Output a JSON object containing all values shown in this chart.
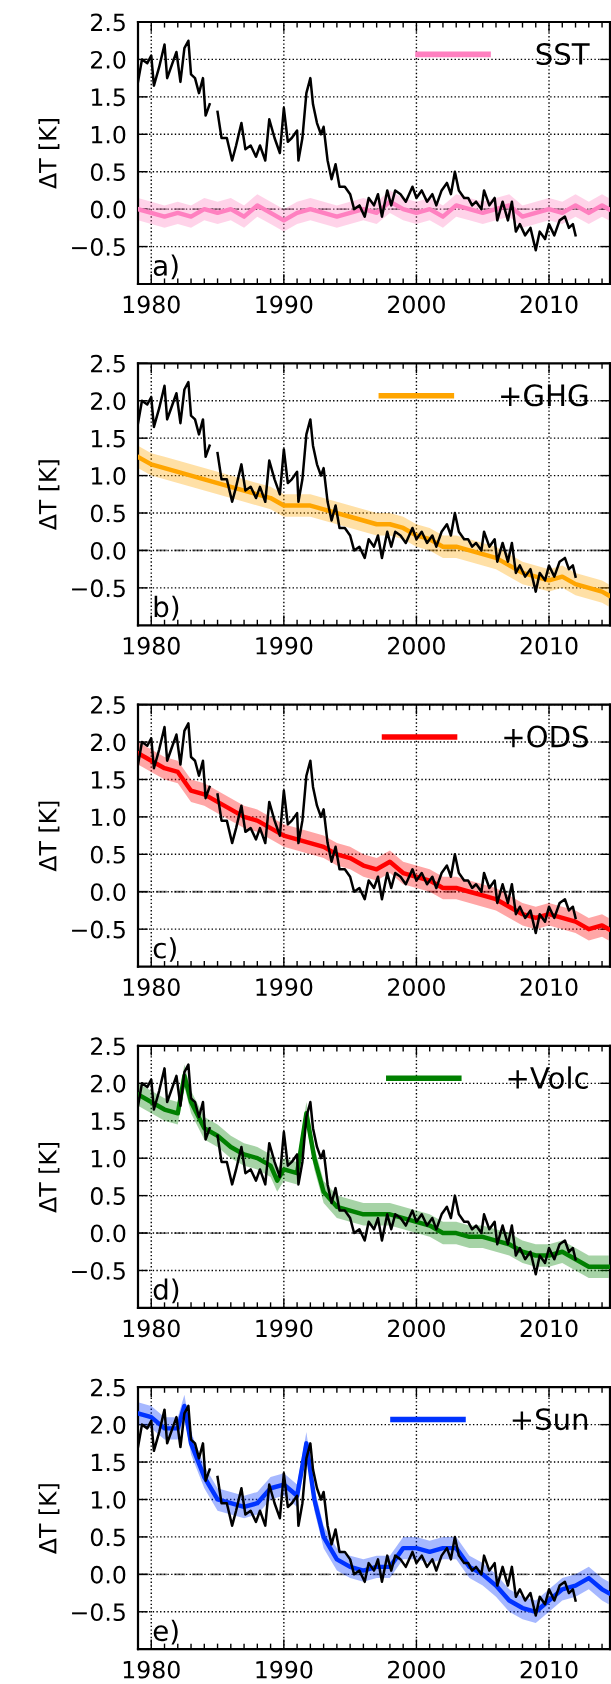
{
  "chart_data": [
    {
      "type": "line",
      "ylabel": "ΔT [K]",
      "annotations": [
        "a)"
      ],
      "xlim": [
        1979,
        2014.6
      ],
      "ylim": [
        -1.0,
        2.5
      ],
      "xticks": [
        1980,
        1990,
        2000,
        2010
      ],
      "yticks": [
        {
          "value": -0.5,
          "label": "−0.5"
        },
        {
          "value": 0.0,
          "label": "0.0"
        },
        {
          "value": 0.5,
          "label": "0.5"
        },
        {
          "value": 1.0,
          "label": "1.0"
        },
        {
          "value": 1.5,
          "label": "1.5"
        },
        {
          "value": 2.0,
          "label": "2.0"
        },
        {
          "value": 2.5,
          "label": "2.5"
        }
      ],
      "grid": true,
      "legend": "top right",
      "ref_lines": [
        {
          "axis": "y",
          "value": 0,
          "color": "#808080",
          "line_style": "dashed"
        }
      ],
      "series": [
        {
          "name": "SST",
          "color": "#ff80c0",
          "x": [
            1979,
            1980,
            1981,
            1982,
            1983,
            1984,
            1985,
            1986,
            1987,
            1988,
            1989,
            1990,
            1991,
            1992,
            1993,
            1994,
            1995,
            1996,
            1997,
            1998,
            1999,
            2000,
            2001,
            2002,
            2003,
            2004,
            2005,
            2006,
            2007,
            2008,
            2009,
            2010,
            2011,
            2012,
            2013,
            2014,
            2014.5
          ],
          "values": [
            0.0,
            -0.05,
            -0.1,
            -0.05,
            -0.1,
            0.0,
            -0.05,
            0.0,
            -0.1,
            0.05,
            -0.05,
            -0.15,
            -0.05,
            0.0,
            -0.05,
            -0.1,
            -0.05,
            0.0,
            -0.05,
            0.1,
            0.0,
            -0.05,
            0.0,
            -0.1,
            0.05,
            0.0,
            -0.05,
            0.0,
            0.05,
            -0.1,
            -0.05,
            0.0,
            -0.05,
            0.05,
            -0.05,
            0.05,
            0.0
          ],
          "lower": [
            -0.15,
            -0.2,
            -0.25,
            -0.2,
            -0.25,
            -0.15,
            -0.2,
            -0.15,
            -0.25,
            -0.1,
            -0.2,
            -0.3,
            -0.2,
            -0.15,
            -0.2,
            -0.25,
            -0.2,
            -0.15,
            -0.2,
            -0.05,
            -0.15,
            -0.2,
            -0.15,
            -0.25,
            -0.1,
            -0.15,
            -0.2,
            -0.15,
            -0.1,
            -0.25,
            -0.2,
            -0.15,
            -0.2,
            -0.1,
            -0.2,
            -0.1,
            -0.15
          ],
          "upper": [
            0.15,
            0.1,
            0.05,
            0.1,
            0.05,
            0.15,
            0.1,
            0.15,
            0.05,
            0.2,
            0.1,
            0.0,
            0.1,
            0.15,
            0.1,
            0.05,
            0.1,
            0.15,
            0.1,
            0.25,
            0.15,
            0.1,
            0.15,
            0.05,
            0.2,
            0.15,
            0.1,
            0.15,
            0.2,
            0.05,
            0.1,
            0.15,
            0.1,
            0.2,
            0.1,
            0.2,
            0.15
          ]
        },
        {
          "color": "#000000",
          "x": [
            1979.0,
            1979.3,
            1979.7,
            1980.0,
            1980.2,
            1980.6,
            1981.0,
            1981.2,
            1981.5,
            1981.9,
            1982.2,
            1982.5,
            1982.8,
            1983.0,
            1983.3,
            1983.6,
            1983.9,
            1984.1,
            1984.4,
            1984.6,
            1985.0,
            1985.3,
            1985.7,
            1986.1,
            1986.4,
            1986.8,
            1987.1,
            1987.5,
            1987.9,
            1988.2,
            1988.6,
            1988.9,
            1989.3,
            1989.7,
            1990.0,
            1990.3,
            1990.6,
            1991.0,
            1991.1,
            1991.4,
            1991.7,
            1992.0,
            1992.2,
            1992.5,
            1992.8,
            1993.0,
            1993.3,
            1993.6,
            1993.9,
            1994.2,
            1994.6,
            1995.0,
            1995.3,
            1995.7,
            1996.1,
            1996.4,
            1996.8,
            1997.1,
            1997.4,
            1997.8,
            1998.1,
            1998.4,
            1998.8,
            1999.2,
            1999.7,
            2000.0,
            2000.4,
            2000.8,
            2001.2,
            2001.5,
            2001.9,
            2002.3,
            2002.6,
            2002.9,
            2003.2,
            2003.6,
            2003.9,
            2004.2,
            2004.5,
            2004.9,
            2005.1,
            2005.5,
            2005.9,
            2006.1,
            2006.5,
            2006.9,
            2007.2,
            2007.5,
            2007.8,
            2008.2,
            2008.6,
            2009.0,
            2009.3,
            2009.7,
            2010.0,
            2010.4,
            2010.8,
            2011.2,
            2011.5,
            2011.8,
            2012.0
          ],
          "values": [
            1.7,
            2.0,
            1.95,
            2.05,
            1.65,
            1.9,
            2.2,
            1.75,
            1.9,
            2.1,
            1.7,
            2.15,
            2.25,
            1.8,
            1.75,
            1.55,
            1.75,
            1.25,
            1.4,
            null,
            1.3,
            0.95,
            0.95,
            0.65,
            0.85,
            1.15,
            0.8,
            0.85,
            0.7,
            0.85,
            0.65,
            1.2,
            0.95,
            0.75,
            1.35,
            0.9,
            0.95,
            1.05,
            0.65,
            0.95,
            1.55,
            1.75,
            1.4,
            1.15,
            1.0,
            1.1,
            0.65,
            0.4,
            0.6,
            0.3,
            0.3,
            0.2,
            0.0,
            0.05,
            -0.1,
            0.15,
            0.05,
            0.2,
            -0.1,
            0.25,
            0.05,
            0.25,
            0.2,
            0.1,
            0.3,
            0.15,
            0.25,
            0.1,
            0.2,
            0.05,
            0.25,
            0.35,
            0.2,
            0.5,
            0.25,
            0.15,
            0.15,
            0.05,
            0.1,
            0.0,
            0.25,
            0.05,
            0.15,
            -0.15,
            0.1,
            -0.15,
            0.1,
            -0.3,
            -0.2,
            -0.35,
            -0.25,
            -0.55,
            -0.3,
            -0.4,
            -0.2,
            -0.35,
            -0.15,
            -0.1,
            -0.25,
            -0.2,
            -0.35
          ]
        }
      ]
    },
    {
      "type": "line",
      "ylabel": "ΔT [K]",
      "annotations": [
        "b)"
      ],
      "xlim": [
        1979,
        2014.6
      ],
      "ylim": [
        -1.0,
        2.5
      ],
      "xticks": [
        1980,
        1990,
        2000,
        2010
      ],
      "yticks": [
        {
          "value": -0.5,
          "label": "−0.5"
        },
        {
          "value": 0.0,
          "label": "0.0"
        },
        {
          "value": 0.5,
          "label": "0.5"
        },
        {
          "value": 1.0,
          "label": "1.0"
        },
        {
          "value": 1.5,
          "label": "1.5"
        },
        {
          "value": 2.0,
          "label": "2.0"
        },
        {
          "value": 2.5,
          "label": "2.5"
        }
      ],
      "grid": true,
      "legend": "top right",
      "ref_lines": [
        {
          "axis": "y",
          "value": 0,
          "color": "#808080",
          "line_style": "dashed"
        }
      ],
      "series": [
        {
          "name": "+GHG",
          "color": "#ffa500",
          "x": [
            1979,
            1980,
            1981,
            1982,
            1983,
            1984,
            1985,
            1986,
            1987,
            1988,
            1989,
            1990,
            1991,
            1992,
            1993,
            1994,
            1995,
            1996,
            1997,
            1998,
            1999,
            2000,
            2001,
            2002,
            2003,
            2004,
            2005,
            2006,
            2007,
            2008,
            2009,
            2010,
            2011,
            2012,
            2013,
            2014,
            2014.5
          ],
          "values": [
            1.25,
            1.15,
            1.1,
            1.05,
            1.0,
            0.95,
            0.9,
            0.85,
            0.8,
            0.75,
            0.7,
            0.6,
            0.6,
            0.6,
            0.55,
            0.5,
            0.45,
            0.4,
            0.35,
            0.35,
            0.3,
            0.2,
            0.15,
            0.05,
            0.05,
            0.0,
            -0.05,
            -0.1,
            -0.2,
            -0.3,
            -0.35,
            -0.4,
            -0.35,
            -0.45,
            -0.5,
            -0.55,
            -0.6
          ],
          "lower": [
            1.1,
            1.0,
            0.95,
            0.9,
            0.85,
            0.8,
            0.75,
            0.7,
            0.65,
            0.6,
            0.55,
            0.45,
            0.45,
            0.45,
            0.4,
            0.35,
            0.3,
            0.25,
            0.2,
            0.2,
            0.15,
            0.05,
            0.0,
            -0.1,
            -0.1,
            -0.15,
            -0.2,
            -0.25,
            -0.35,
            -0.45,
            -0.5,
            -0.55,
            -0.5,
            -0.6,
            -0.65,
            -0.7,
            -0.75
          ],
          "upper": [
            1.4,
            1.3,
            1.25,
            1.2,
            1.15,
            1.1,
            1.05,
            1.0,
            0.95,
            0.9,
            0.85,
            0.75,
            0.75,
            0.75,
            0.7,
            0.65,
            0.6,
            0.55,
            0.5,
            0.5,
            0.45,
            0.35,
            0.3,
            0.2,
            0.2,
            0.15,
            0.1,
            0.05,
            -0.05,
            -0.15,
            -0.2,
            -0.25,
            -0.2,
            -0.3,
            -0.35,
            -0.4,
            -0.45
          ]
        },
        {
          "color": "#000000",
          "x": [
            1979.0,
            1979.3,
            1979.7,
            1980.0,
            1980.2,
            1980.6,
            1981.0,
            1981.2,
            1981.5,
            1981.9,
            1982.2,
            1982.5,
            1982.8,
            1983.0,
            1983.3,
            1983.6,
            1983.9,
            1984.1,
            1984.4,
            1984.6,
            1985.0,
            1985.3,
            1985.7,
            1986.1,
            1986.4,
            1986.8,
            1987.1,
            1987.5,
            1987.9,
            1988.2,
            1988.6,
            1988.9,
            1989.3,
            1989.7,
            1990.0,
            1990.3,
            1990.6,
            1991.0,
            1991.1,
            1991.4,
            1991.7,
            1992.0,
            1992.2,
            1992.5,
            1992.8,
            1993.0,
            1993.3,
            1993.6,
            1993.9,
            1994.2,
            1994.6,
            1995.0,
            1995.3,
            1995.7,
            1996.1,
            1996.4,
            1996.8,
            1997.1,
            1997.4,
            1997.8,
            1998.1,
            1998.4,
            1998.8,
            1999.2,
            1999.7,
            2000.0,
            2000.4,
            2000.8,
            2001.2,
            2001.5,
            2001.9,
            2002.3,
            2002.6,
            2002.9,
            2003.2,
            2003.6,
            2003.9,
            2004.2,
            2004.5,
            2004.9,
            2005.1,
            2005.5,
            2005.9,
            2006.1,
            2006.5,
            2006.9,
            2007.2,
            2007.5,
            2007.8,
            2008.2,
            2008.6,
            2009.0,
            2009.3,
            2009.7,
            2010.0,
            2010.4,
            2010.8,
            2011.2,
            2011.5,
            2011.8,
            2012.0
          ],
          "values": [
            1.7,
            2.0,
            1.95,
            2.05,
            1.65,
            1.9,
            2.2,
            1.75,
            1.9,
            2.1,
            1.7,
            2.15,
            2.25,
            1.8,
            1.75,
            1.55,
            1.75,
            1.25,
            1.4,
            null,
            1.3,
            0.95,
            0.95,
            0.65,
            0.85,
            1.15,
            0.8,
            0.85,
            0.7,
            0.85,
            0.65,
            1.2,
            0.95,
            0.75,
            1.35,
            0.9,
            0.95,
            1.05,
            0.65,
            0.95,
            1.55,
            1.75,
            1.4,
            1.15,
            1.0,
            1.1,
            0.65,
            0.4,
            0.6,
            0.3,
            0.3,
            0.2,
            0.0,
            0.05,
            -0.1,
            0.15,
            0.05,
            0.2,
            -0.1,
            0.25,
            0.05,
            0.25,
            0.2,
            0.1,
            0.3,
            0.15,
            0.25,
            0.1,
            0.2,
            0.05,
            0.25,
            0.35,
            0.2,
            0.5,
            0.25,
            0.15,
            0.15,
            0.05,
            0.1,
            0.0,
            0.25,
            0.05,
            0.15,
            -0.15,
            0.1,
            -0.15,
            0.1,
            -0.3,
            -0.2,
            -0.35,
            -0.25,
            -0.55,
            -0.3,
            -0.4,
            -0.2,
            -0.35,
            -0.15,
            -0.1,
            -0.25,
            -0.2,
            -0.35
          ]
        }
      ]
    },
    {
      "type": "line",
      "ylabel": "ΔT [K]",
      "annotations": [
        "c)"
      ],
      "xlim": [
        1979,
        2014.6
      ],
      "ylim": [
        -1.0,
        2.5
      ],
      "xticks": [
        1980,
        1990,
        2000,
        2010
      ],
      "yticks": [
        {
          "value": -0.5,
          "label": "−0.5"
        },
        {
          "value": 0.0,
          "label": "0.0"
        },
        {
          "value": 0.5,
          "label": "0.5"
        },
        {
          "value": 1.0,
          "label": "1.0"
        },
        {
          "value": 1.5,
          "label": "1.5"
        },
        {
          "value": 2.0,
          "label": "2.0"
        },
        {
          "value": 2.5,
          "label": "2.5"
        }
      ],
      "grid": true,
      "legend": "top right",
      "ref_lines": [
        {
          "axis": "y",
          "value": 0,
          "color": "#808080",
          "line_style": "dashed"
        }
      ],
      "series": [
        {
          "name": "+ODS",
          "color": "#ff0000",
          "x": [
            1979,
            1980,
            1981,
            1982,
            1983,
            1984,
            1985,
            1986,
            1987,
            1988,
            1989,
            1990,
            1991,
            1992,
            1993,
            1994,
            1995,
            1996,
            1997,
            1998,
            1999,
            2000,
            2001,
            2002,
            2003,
            2004,
            2005,
            2006,
            2007,
            2008,
            2009,
            2010,
            2011,
            2012,
            2013,
            2014,
            2014.5
          ],
          "values": [
            1.85,
            1.75,
            1.65,
            1.6,
            1.35,
            1.3,
            1.2,
            1.1,
            1.0,
            0.95,
            0.85,
            0.75,
            0.7,
            0.65,
            0.6,
            0.5,
            0.45,
            0.35,
            0.3,
            0.4,
            0.25,
            0.2,
            0.15,
            0.05,
            0.05,
            0.0,
            -0.05,
            -0.1,
            -0.2,
            -0.3,
            -0.35,
            -0.3,
            -0.35,
            -0.4,
            -0.5,
            -0.45,
            -0.5
          ],
          "lower": [
            1.7,
            1.6,
            1.5,
            1.45,
            1.2,
            1.15,
            1.05,
            0.95,
            0.85,
            0.8,
            0.7,
            0.6,
            0.55,
            0.5,
            0.45,
            0.35,
            0.3,
            0.2,
            0.15,
            0.25,
            0.1,
            0.05,
            0.0,
            -0.1,
            -0.1,
            -0.15,
            -0.2,
            -0.25,
            -0.35,
            -0.45,
            -0.5,
            -0.45,
            -0.5,
            -0.55,
            -0.65,
            -0.6,
            -0.65
          ],
          "upper": [
            2.0,
            1.9,
            1.8,
            1.75,
            1.5,
            1.45,
            1.35,
            1.25,
            1.15,
            1.1,
            1.0,
            0.9,
            0.85,
            0.8,
            0.75,
            0.65,
            0.6,
            0.5,
            0.45,
            0.55,
            0.4,
            0.35,
            0.3,
            0.2,
            0.2,
            0.15,
            0.1,
            0.05,
            -0.05,
            -0.15,
            -0.2,
            -0.15,
            -0.2,
            -0.25,
            -0.35,
            -0.3,
            -0.35
          ]
        },
        {
          "color": "#000000",
          "x": [
            1979.0,
            1979.3,
            1979.7,
            1980.0,
            1980.2,
            1980.6,
            1981.0,
            1981.2,
            1981.5,
            1981.9,
            1982.2,
            1982.5,
            1982.8,
            1983.0,
            1983.3,
            1983.6,
            1983.9,
            1984.1,
            1984.4,
            1984.6,
            1985.0,
            1985.3,
            1985.7,
            1986.1,
            1986.4,
            1986.8,
            1987.1,
            1987.5,
            1987.9,
            1988.2,
            1988.6,
            1988.9,
            1989.3,
            1989.7,
            1990.0,
            1990.3,
            1990.6,
            1991.0,
            1991.1,
            1991.4,
            1991.7,
            1992.0,
            1992.2,
            1992.5,
            1992.8,
            1993.0,
            1993.3,
            1993.6,
            1993.9,
            1994.2,
            1994.6,
            1995.0,
            1995.3,
            1995.7,
            1996.1,
            1996.4,
            1996.8,
            1997.1,
            1997.4,
            1997.8,
            1998.1,
            1998.4,
            1998.8,
            1999.2,
            1999.7,
            2000.0,
            2000.4,
            2000.8,
            2001.2,
            2001.5,
            2001.9,
            2002.3,
            2002.6,
            2002.9,
            2003.2,
            2003.6,
            2003.9,
            2004.2,
            2004.5,
            2004.9,
            2005.1,
            2005.5,
            2005.9,
            2006.1,
            2006.5,
            2006.9,
            2007.2,
            2007.5,
            2007.8,
            2008.2,
            2008.6,
            2009.0,
            2009.3,
            2009.7,
            2010.0,
            2010.4,
            2010.8,
            2011.2,
            2011.5,
            2011.8,
            2012.0
          ],
          "values": [
            1.7,
            2.0,
            1.95,
            2.05,
            1.65,
            1.9,
            2.2,
            1.75,
            1.9,
            2.1,
            1.7,
            2.15,
            2.25,
            1.8,
            1.75,
            1.55,
            1.75,
            1.25,
            1.4,
            null,
            1.3,
            0.95,
            0.95,
            0.65,
            0.85,
            1.15,
            0.8,
            0.85,
            0.7,
            0.85,
            0.65,
            1.2,
            0.95,
            0.75,
            1.35,
            0.9,
            0.95,
            1.05,
            0.65,
            0.95,
            1.55,
            1.75,
            1.4,
            1.15,
            1.0,
            1.1,
            0.65,
            0.4,
            0.6,
            0.3,
            0.3,
            0.2,
            0.0,
            0.05,
            -0.1,
            0.15,
            0.05,
            0.2,
            -0.1,
            0.25,
            0.05,
            0.25,
            0.2,
            0.1,
            0.3,
            0.15,
            0.25,
            0.1,
            0.2,
            0.05,
            0.25,
            0.35,
            0.2,
            0.5,
            0.25,
            0.15,
            0.15,
            0.05,
            0.1,
            0.0,
            0.25,
            0.05,
            0.15,
            -0.15,
            0.1,
            -0.15,
            0.1,
            -0.3,
            -0.2,
            -0.35,
            -0.25,
            -0.55,
            -0.3,
            -0.4,
            -0.2,
            -0.35,
            -0.15,
            -0.1,
            -0.25,
            -0.2,
            -0.35
          ]
        }
      ]
    },
    {
      "type": "line",
      "ylabel": "ΔT [K]",
      "annotations": [
        "d)"
      ],
      "xlim": [
        1979,
        2014.6
      ],
      "ylim": [
        -1.0,
        2.5
      ],
      "xticks": [
        1980,
        1990,
        2000,
        2010
      ],
      "yticks": [
        {
          "value": -0.5,
          "label": "−0.5"
        },
        {
          "value": 0.0,
          "label": "0.0"
        },
        {
          "value": 0.5,
          "label": "0.5"
        },
        {
          "value": 1.0,
          "label": "1.0"
        },
        {
          "value": 1.5,
          "label": "1.5"
        },
        {
          "value": 2.0,
          "label": "2.0"
        },
        {
          "value": 2.5,
          "label": "2.5"
        }
      ],
      "grid": true,
      "legend": "top right",
      "ref_lines": [
        {
          "axis": "y",
          "value": 0,
          "color": "#808080",
          "line_style": "dashed"
        }
      ],
      "series": [
        {
          "name": "+Volc",
          "color": "#008000",
          "x": [
            1979,
            1980,
            1981,
            1982,
            1982.5,
            1983,
            1984,
            1985,
            1986,
            1987,
            1988,
            1989,
            1989.5,
            1990,
            1991,
            1991.7,
            1992.3,
            1993,
            1994,
            1995,
            1996,
            1997,
            1998,
            1999,
            2000,
            2001,
            2002,
            2003,
            2004,
            2005,
            2006,
            2007,
            2008,
            2009,
            2010,
            2011,
            2012,
            2013,
            2014,
            2014.5
          ],
          "values": [
            1.85,
            1.75,
            1.65,
            1.6,
            2.1,
            1.75,
            1.4,
            1.3,
            1.15,
            1.05,
            1.0,
            0.9,
            0.7,
            0.85,
            0.8,
            1.6,
            1.0,
            0.55,
            0.35,
            0.3,
            0.25,
            0.25,
            0.25,
            0.2,
            0.15,
            0.1,
            0.0,
            0.0,
            -0.05,
            -0.05,
            -0.1,
            -0.15,
            -0.25,
            -0.3,
            -0.3,
            -0.25,
            -0.35,
            -0.45,
            -0.45,
            -0.45
          ],
          "lower": [
            1.7,
            1.6,
            1.5,
            1.45,
            1.95,
            1.6,
            1.25,
            1.15,
            1.0,
            0.9,
            0.85,
            0.75,
            0.55,
            0.7,
            0.65,
            1.45,
            0.85,
            0.4,
            0.2,
            0.15,
            0.1,
            0.1,
            0.1,
            0.05,
            0.0,
            -0.05,
            -0.15,
            -0.15,
            -0.2,
            -0.2,
            -0.25,
            -0.3,
            -0.4,
            -0.45,
            -0.45,
            -0.4,
            -0.5,
            -0.6,
            -0.6,
            -0.6
          ],
          "upper": [
            2.0,
            1.9,
            1.8,
            1.75,
            2.25,
            1.9,
            1.55,
            1.45,
            1.3,
            1.2,
            1.15,
            1.05,
            0.85,
            1.0,
            0.95,
            1.75,
            1.15,
            0.7,
            0.5,
            0.45,
            0.4,
            0.4,
            0.4,
            0.35,
            0.3,
            0.25,
            0.15,
            0.15,
            0.1,
            0.1,
            0.05,
            0.0,
            -0.1,
            -0.15,
            -0.15,
            -0.1,
            -0.2,
            -0.3,
            -0.3,
            -0.3
          ]
        },
        {
          "color": "#000000",
          "x": [
            1979.0,
            1979.3,
            1979.7,
            1980.0,
            1980.2,
            1980.6,
            1981.0,
            1981.2,
            1981.5,
            1981.9,
            1982.2,
            1982.5,
            1982.8,
            1983.0,
            1983.3,
            1983.6,
            1983.9,
            1984.1,
            1984.4,
            1984.6,
            1985.0,
            1985.3,
            1985.7,
            1986.1,
            1986.4,
            1986.8,
            1987.1,
            1987.5,
            1987.9,
            1988.2,
            1988.6,
            1988.9,
            1989.3,
            1989.7,
            1990.0,
            1990.3,
            1990.6,
            1991.0,
            1991.1,
            1991.4,
            1991.7,
            1992.0,
            1992.2,
            1992.5,
            1992.8,
            1993.0,
            1993.3,
            1993.6,
            1993.9,
            1994.2,
            1994.6,
            1995.0,
            1995.3,
            1995.7,
            1996.1,
            1996.4,
            1996.8,
            1997.1,
            1997.4,
            1997.8,
            1998.1,
            1998.4,
            1998.8,
            1999.2,
            1999.7,
            2000.0,
            2000.4,
            2000.8,
            2001.2,
            2001.5,
            2001.9,
            2002.3,
            2002.6,
            2002.9,
            2003.2,
            2003.6,
            2003.9,
            2004.2,
            2004.5,
            2004.9,
            2005.1,
            2005.5,
            2005.9,
            2006.1,
            2006.5,
            2006.9,
            2007.2,
            2007.5,
            2007.8,
            2008.2,
            2008.6,
            2009.0,
            2009.3,
            2009.7,
            2010.0,
            2010.4,
            2010.8,
            2011.2,
            2011.5,
            2011.8,
            2012.0
          ],
          "values": [
            1.7,
            2.0,
            1.95,
            2.05,
            1.65,
            1.9,
            2.2,
            1.75,
            1.9,
            2.1,
            1.7,
            2.15,
            2.25,
            1.8,
            1.75,
            1.55,
            1.75,
            1.25,
            1.4,
            null,
            1.3,
            0.95,
            0.95,
            0.65,
            0.85,
            1.15,
            0.8,
            0.85,
            0.7,
            0.85,
            0.65,
            1.2,
            0.95,
            0.75,
            1.35,
            0.9,
            0.95,
            1.05,
            0.65,
            0.95,
            1.55,
            1.75,
            1.4,
            1.15,
            1.0,
            1.1,
            0.65,
            0.4,
            0.6,
            0.3,
            0.3,
            0.2,
            0.0,
            0.05,
            -0.1,
            0.15,
            0.05,
            0.2,
            -0.1,
            0.25,
            0.05,
            0.25,
            0.2,
            0.1,
            0.3,
            0.15,
            0.25,
            0.1,
            0.2,
            0.05,
            0.25,
            0.35,
            0.2,
            0.5,
            0.25,
            0.15,
            0.15,
            0.05,
            0.1,
            0.0,
            0.25,
            0.05,
            0.15,
            -0.15,
            0.1,
            -0.15,
            0.1,
            -0.3,
            -0.2,
            -0.35,
            -0.25,
            -0.55,
            -0.3,
            -0.4,
            -0.2,
            -0.35,
            -0.15,
            -0.1,
            -0.25,
            -0.2,
            -0.35
          ]
        }
      ]
    },
    {
      "type": "line",
      "ylabel": "ΔT [K]",
      "annotations": [
        "e)"
      ],
      "xlim": [
        1979,
        2014.6
      ],
      "ylim": [
        -1.0,
        2.5
      ],
      "xticks": [
        1980,
        1990,
        2000,
        2010
      ],
      "yticks": [
        {
          "value": -0.5,
          "label": "−0.5"
        },
        {
          "value": 0.0,
          "label": "0.0"
        },
        {
          "value": 0.5,
          "label": "0.5"
        },
        {
          "value": 1.0,
          "label": "1.0"
        },
        {
          "value": 1.5,
          "label": "1.5"
        },
        {
          "value": 2.0,
          "label": "2.0"
        },
        {
          "value": 2.5,
          "label": "2.5"
        }
      ],
      "grid": true,
      "legend": "top right",
      "ref_lines": [
        {
          "axis": "y",
          "value": 0,
          "color": "#808080",
          "line_style": "dashed"
        }
      ],
      "series": [
        {
          "name": "+Sun",
          "color": "#0033ff",
          "x": [
            1979,
            1980,
            1981,
            1982,
            1982.5,
            1983,
            1984,
            1985,
            1986,
            1987,
            1988,
            1989,
            1990,
            1991,
            1991.7,
            1992.3,
            1993,
            1994,
            1995,
            1996,
            1997,
            1998,
            1999,
            2000,
            2001,
            2002,
            2003,
            2004,
            2005,
            2006,
            2007,
            2008,
            2009,
            2010,
            2011,
            2012,
            2013,
            2014,
            2014.5
          ],
          "values": [
            2.15,
            2.1,
            1.95,
            1.95,
            2.25,
            1.75,
            1.3,
            1.0,
            0.95,
            0.9,
            0.95,
            1.15,
            1.2,
            1.05,
            1.75,
            1.0,
            0.5,
            0.2,
            0.1,
            0.05,
            0.1,
            0.1,
            0.35,
            0.35,
            0.3,
            0.35,
            0.35,
            0.1,
            0.0,
            -0.15,
            -0.35,
            -0.45,
            -0.5,
            -0.35,
            -0.2,
            -0.15,
            -0.05,
            -0.2,
            -0.25
          ],
          "lower": [
            2.0,
            1.95,
            1.8,
            1.8,
            2.1,
            1.6,
            1.15,
            0.85,
            0.8,
            0.75,
            0.8,
            1.0,
            1.05,
            0.9,
            1.6,
            0.85,
            0.35,
            0.05,
            -0.05,
            -0.1,
            -0.05,
            -0.05,
            0.2,
            0.2,
            0.15,
            0.2,
            0.2,
            -0.05,
            -0.15,
            -0.3,
            -0.5,
            -0.6,
            -0.65,
            -0.5,
            -0.35,
            -0.3,
            -0.2,
            -0.35,
            -0.4
          ],
          "upper": [
            2.3,
            2.25,
            2.1,
            2.1,
            2.4,
            1.9,
            1.45,
            1.15,
            1.1,
            1.05,
            1.1,
            1.3,
            1.35,
            1.2,
            1.9,
            1.15,
            0.65,
            0.35,
            0.25,
            0.2,
            0.25,
            0.25,
            0.5,
            0.5,
            0.45,
            0.5,
            0.5,
            0.25,
            0.15,
            0.0,
            -0.2,
            -0.3,
            -0.35,
            -0.2,
            -0.05,
            0.0,
            0.1,
            -0.05,
            -0.1
          ]
        },
        {
          "color": "#000000",
          "x": [
            1979.0,
            1979.3,
            1979.7,
            1980.0,
            1980.2,
            1980.6,
            1981.0,
            1981.2,
            1981.5,
            1981.9,
            1982.2,
            1982.5,
            1982.8,
            1983.0,
            1983.3,
            1983.6,
            1983.9,
            1984.1,
            1984.4,
            1984.6,
            1985.0,
            1985.3,
            1985.7,
            1986.1,
            1986.4,
            1986.8,
            1987.1,
            1987.5,
            1987.9,
            1988.2,
            1988.6,
            1988.9,
            1989.3,
            1989.7,
            1990.0,
            1990.3,
            1990.6,
            1991.0,
            1991.1,
            1991.4,
            1991.7,
            1992.0,
            1992.2,
            1992.5,
            1992.8,
            1993.0,
            1993.3,
            1993.6,
            1993.9,
            1994.2,
            1994.6,
            1995.0,
            1995.3,
            1995.7,
            1996.1,
            1996.4,
            1996.8,
            1997.1,
            1997.4,
            1997.8,
            1998.1,
            1998.4,
            1998.8,
            1999.2,
            1999.7,
            2000.0,
            2000.4,
            2000.8,
            2001.2,
            2001.5,
            2001.9,
            2002.3,
            2002.6,
            2002.9,
            2003.2,
            2003.6,
            2003.9,
            2004.2,
            2004.5,
            2004.9,
            2005.1,
            2005.5,
            2005.9,
            2006.1,
            2006.5,
            2006.9,
            2007.2,
            2007.5,
            2007.8,
            2008.2,
            2008.6,
            2009.0,
            2009.3,
            2009.7,
            2010.0,
            2010.4,
            2010.8,
            2011.2,
            2011.5,
            2011.8,
            2012.0
          ],
          "values": [
            1.7,
            2.0,
            1.95,
            2.05,
            1.65,
            1.9,
            2.2,
            1.75,
            1.9,
            2.1,
            1.7,
            2.15,
            2.25,
            1.8,
            1.75,
            1.55,
            1.75,
            1.25,
            1.4,
            null,
            1.3,
            0.95,
            0.95,
            0.65,
            0.85,
            1.15,
            0.8,
            0.85,
            0.7,
            0.85,
            0.65,
            1.2,
            0.95,
            0.75,
            1.35,
            0.9,
            0.95,
            1.05,
            0.65,
            0.95,
            1.55,
            1.75,
            1.4,
            1.15,
            1.0,
            1.1,
            0.65,
            0.4,
            0.6,
            0.3,
            0.3,
            0.2,
            0.0,
            0.05,
            -0.1,
            0.15,
            0.05,
            0.2,
            -0.1,
            0.25,
            0.05,
            0.25,
            0.2,
            0.1,
            0.3,
            0.15,
            0.25,
            0.1,
            0.2,
            0.05,
            0.25,
            0.35,
            0.2,
            0.5,
            0.25,
            0.15,
            0.15,
            0.05,
            0.1,
            0.0,
            0.25,
            0.05,
            0.15,
            -0.15,
            0.1,
            -0.15,
            0.1,
            -0.3,
            -0.2,
            -0.35,
            -0.25,
            -0.55,
            -0.3,
            -0.4,
            -0.2,
            -0.35,
            -0.15,
            -0.1,
            -0.25,
            -0.2,
            -0.35
          ]
        }
      ]
    }
  ]
}
